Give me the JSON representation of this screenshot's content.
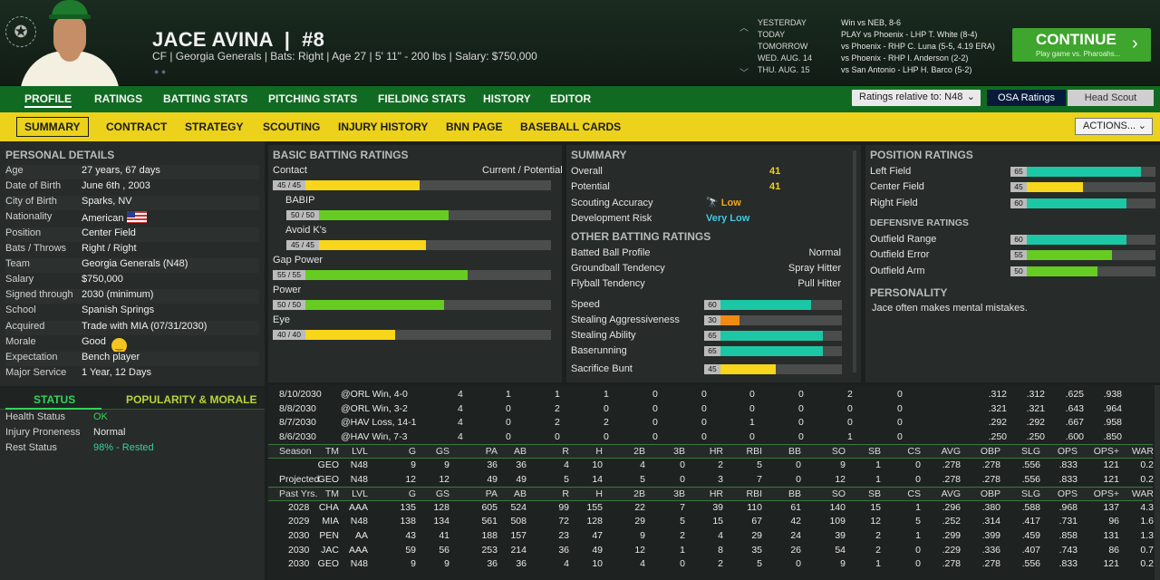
{
  "player": {
    "name": "JACE AVINA",
    "number": "#8",
    "info": "CF | Georgia Generals  |  Bats: Right  |  Age 27  |  5' 11\" - 200 lbs  |  Salary: $750,000"
  },
  "schedule": [
    {
      "day": "YESTERDAY",
      "game": "Win vs NEB, 8-6"
    },
    {
      "day": "TODAY",
      "game": "PLAY vs Phoenix - LHP T. White (8-4)"
    },
    {
      "day": "TOMORROW",
      "game": "vs Phoenix - RHP C. Luna (5-5, 4.19 ERA)"
    },
    {
      "day": "WED. AUG. 14",
      "game": "vs Phoenix - RHP I. Anderson (2-2)"
    },
    {
      "day": "THU. AUG. 15",
      "game": "vs San Antonio - LHP H. Barco (5-2)"
    }
  ],
  "continue": {
    "label": "CONTINUE",
    "sub": "Play game vs. Pharoahs..."
  },
  "nav1": [
    "PROFILE",
    "RATINGS",
    "BATTING STATS",
    "PITCHING STATS",
    "FIELDING STATS",
    "HISTORY",
    "EDITOR"
  ],
  "ratings_rel": "Ratings relative to: N48",
  "osa": "OSA Ratings",
  "head_scout": "Head Scout",
  "nav2": [
    "SUMMARY",
    "CONTRACT",
    "STRATEGY",
    "SCOUTING",
    "INJURY HISTORY",
    "BNN PAGE",
    "BASEBALL CARDS"
  ],
  "actions": "ACTIONS...",
  "personal": {
    "title": "PERSONAL DETAILS",
    "rows": [
      [
        "Age",
        "27 years, 67 days"
      ],
      [
        "Date of Birth",
        "June 6th , 2003"
      ],
      [
        "City of Birth",
        "Sparks, NV"
      ],
      [
        "Nationality",
        "American"
      ],
      [
        "Position",
        "Center Field"
      ],
      [
        "Bats / Throws",
        "Right / Right"
      ],
      [
        "Team",
        "Georgia Generals (N48)"
      ],
      [
        "Salary",
        "$750,000"
      ],
      [
        "Signed through",
        "2030 (minimum)"
      ],
      [
        "School",
        "Spanish Springs"
      ],
      [
        "Acquired",
        "Trade with MIA (07/31/2030)"
      ],
      [
        "Morale",
        "Good"
      ],
      [
        "Expectation",
        "Bench player"
      ],
      [
        "Major Service",
        "1 Year, 12 Days"
      ]
    ]
  },
  "status": {
    "tab1": "STATUS",
    "tab2": "POPULARITY & MORALE",
    "rows": [
      [
        "Health Status",
        "OK"
      ],
      [
        "Injury Proneness",
        "Normal"
      ],
      [
        "Rest Status",
        "98% - Rested"
      ]
    ]
  },
  "batting": {
    "title": "BASIC BATTING RATINGS",
    "cur_pot": "Current / Potential",
    "rows": [
      {
        "label": "Contact",
        "text": "45 / 45",
        "value": 45,
        "color": "yl"
      },
      {
        "label": "BABIP",
        "text": "50 / 50",
        "value": 50,
        "color": "gr"
      },
      {
        "label": "Avoid K's",
        "text": "45 / 45",
        "value": 45,
        "color": "yl"
      },
      {
        "label": "Gap Power",
        "text": "55 / 55",
        "value": 55,
        "color": "gr"
      },
      {
        "label": "Power",
        "text": "50 / 50",
        "value": 50,
        "color": "gr"
      },
      {
        "label": "Eye",
        "text": "40 / 40",
        "value": 40,
        "color": "yl"
      }
    ]
  },
  "summary": {
    "title": "SUMMARY",
    "overall_label": "Overall",
    "overall": "41",
    "potential_label": "Potential",
    "potential": "41",
    "scout_label": "Scouting Accuracy",
    "scout": "Low",
    "risk_label": "Development Risk",
    "risk": "Very Low",
    "other_title": "OTHER BATTING RATINGS",
    "other": [
      [
        "Batted Ball Profile",
        "Normal"
      ],
      [
        "Groundball Tendency",
        "Spray Hitter"
      ],
      [
        "Flyball Tendency",
        "Pull Hitter"
      ]
    ],
    "bars": [
      {
        "label": "Speed",
        "value": 60,
        "color": "tl"
      },
      {
        "label": "Stealing Aggressiveness",
        "value": 30,
        "color": "or"
      },
      {
        "label": "Stealing Ability",
        "value": 65,
        "color": "tl"
      },
      {
        "label": "Baserunning",
        "value": 65,
        "color": "tl"
      },
      {
        "label": "Sacrifice Bunt",
        "value": 45,
        "color": "yl"
      }
    ]
  },
  "position": {
    "title": "POSITION RATINGS",
    "rows": [
      {
        "label": "Left Field",
        "value": 65,
        "color": "tl"
      },
      {
        "label": "Center Field",
        "value": 45,
        "color": "yl"
      },
      {
        "label": "Right Field",
        "value": 60,
        "color": "tl"
      }
    ],
    "def_title": "DEFENSIVE RATINGS",
    "def": [
      {
        "label": "Outfield Range",
        "value": 60,
        "color": "tl"
      },
      {
        "label": "Outfield Error",
        "value": 55,
        "color": "gr"
      },
      {
        "label": "Outfield Arm",
        "value": 50,
        "color": "gr"
      }
    ],
    "pers_title": "PERSONALITY",
    "pers_text": "Jace often makes mental mistakes."
  },
  "games": [
    [
      "8/10/2030",
      "@ORL Win, 4-0",
      "4",
      "1",
      "1",
      "1",
      "0",
      "0",
      "0",
      "0",
      "2",
      "0",
      ".312",
      ".312",
      ".625",
      ".938"
    ],
    [
      "8/8/2030",
      "@ORL Win, 3-2",
      "4",
      "0",
      "2",
      "0",
      "0",
      "0",
      "0",
      "0",
      "0",
      "0",
      ".321",
      ".321",
      ".643",
      ".964"
    ],
    [
      "8/7/2030",
      "@HAV Loss, 14-1",
      "4",
      "0",
      "2",
      "2",
      "0",
      "0",
      "1",
      "0",
      "0",
      "0",
      ".292",
      ".292",
      ".667",
      ".958"
    ],
    [
      "8/6/2030",
      "@HAV Win, 7-3",
      "4",
      "0",
      "0",
      "0",
      "0",
      "0",
      "0",
      "0",
      "1",
      "0",
      ".250",
      ".250",
      ".600",
      ".850"
    ]
  ],
  "cols": [
    "TM",
    "LVL",
    "G",
    "GS",
    "PA",
    "AB",
    "R",
    "H",
    "2B",
    "3B",
    "HR",
    "RBI",
    "BB",
    "SO",
    "SB",
    "CS",
    "AVG",
    "OBP",
    "SLG",
    "OPS",
    "OPS+",
    "WAR"
  ],
  "season_label": "Season",
  "projected_label": "Projected",
  "past_label": "Past Yrs.",
  "season": [
    "GEO",
    "N48",
    "9",
    "9",
    "36",
    "36",
    "4",
    "10",
    "4",
    "0",
    "2",
    "5",
    "0",
    "9",
    "1",
    "0",
    ".278",
    ".278",
    ".556",
    ".833",
    "121",
    "0.2"
  ],
  "projected": [
    "GEO",
    "N48",
    "12",
    "12",
    "49",
    "49",
    "5",
    "14",
    "5",
    "0",
    "3",
    "7",
    "0",
    "12",
    "1",
    "0",
    ".278",
    ".278",
    ".556",
    ".833",
    "121",
    "0.2"
  ],
  "past": [
    [
      "2028",
      "CHA",
      "AAA",
      "135",
      "128",
      "605",
      "524",
      "99",
      "155",
      "22",
      "7",
      "39",
      "110",
      "61",
      "140",
      "15",
      "1",
      ".296",
      ".380",
      ".588",
      ".968",
      "137",
      "4.3"
    ],
    [
      "2029",
      "MIA",
      "N48",
      "138",
      "134",
      "561",
      "508",
      "72",
      "128",
      "29",
      "5",
      "15",
      "67",
      "42",
      "109",
      "12",
      "5",
      ".252",
      ".314",
      ".417",
      ".731",
      "96",
      "1.6"
    ],
    [
      "2030",
      "PEN",
      "AA",
      "43",
      "41",
      "188",
      "157",
      "23",
      "47",
      "9",
      "2",
      "4",
      "29",
      "24",
      "39",
      "2",
      "1",
      ".299",
      ".399",
      ".459",
      ".858",
      "131",
      "1.3"
    ],
    [
      "2030",
      "JAC",
      "AAA",
      "59",
      "56",
      "253",
      "214",
      "36",
      "49",
      "12",
      "1",
      "8",
      "35",
      "26",
      "54",
      "2",
      "0",
      ".229",
      ".336",
      ".407",
      ".743",
      "86",
      "0.7"
    ],
    [
      "2030",
      "GEO",
      "N48",
      "9",
      "9",
      "36",
      "36",
      "4",
      "10",
      "4",
      "0",
      "2",
      "5",
      "0",
      "9",
      "1",
      "0",
      ".278",
      ".278",
      ".556",
      ".833",
      "121",
      "0.2"
    ]
  ]
}
